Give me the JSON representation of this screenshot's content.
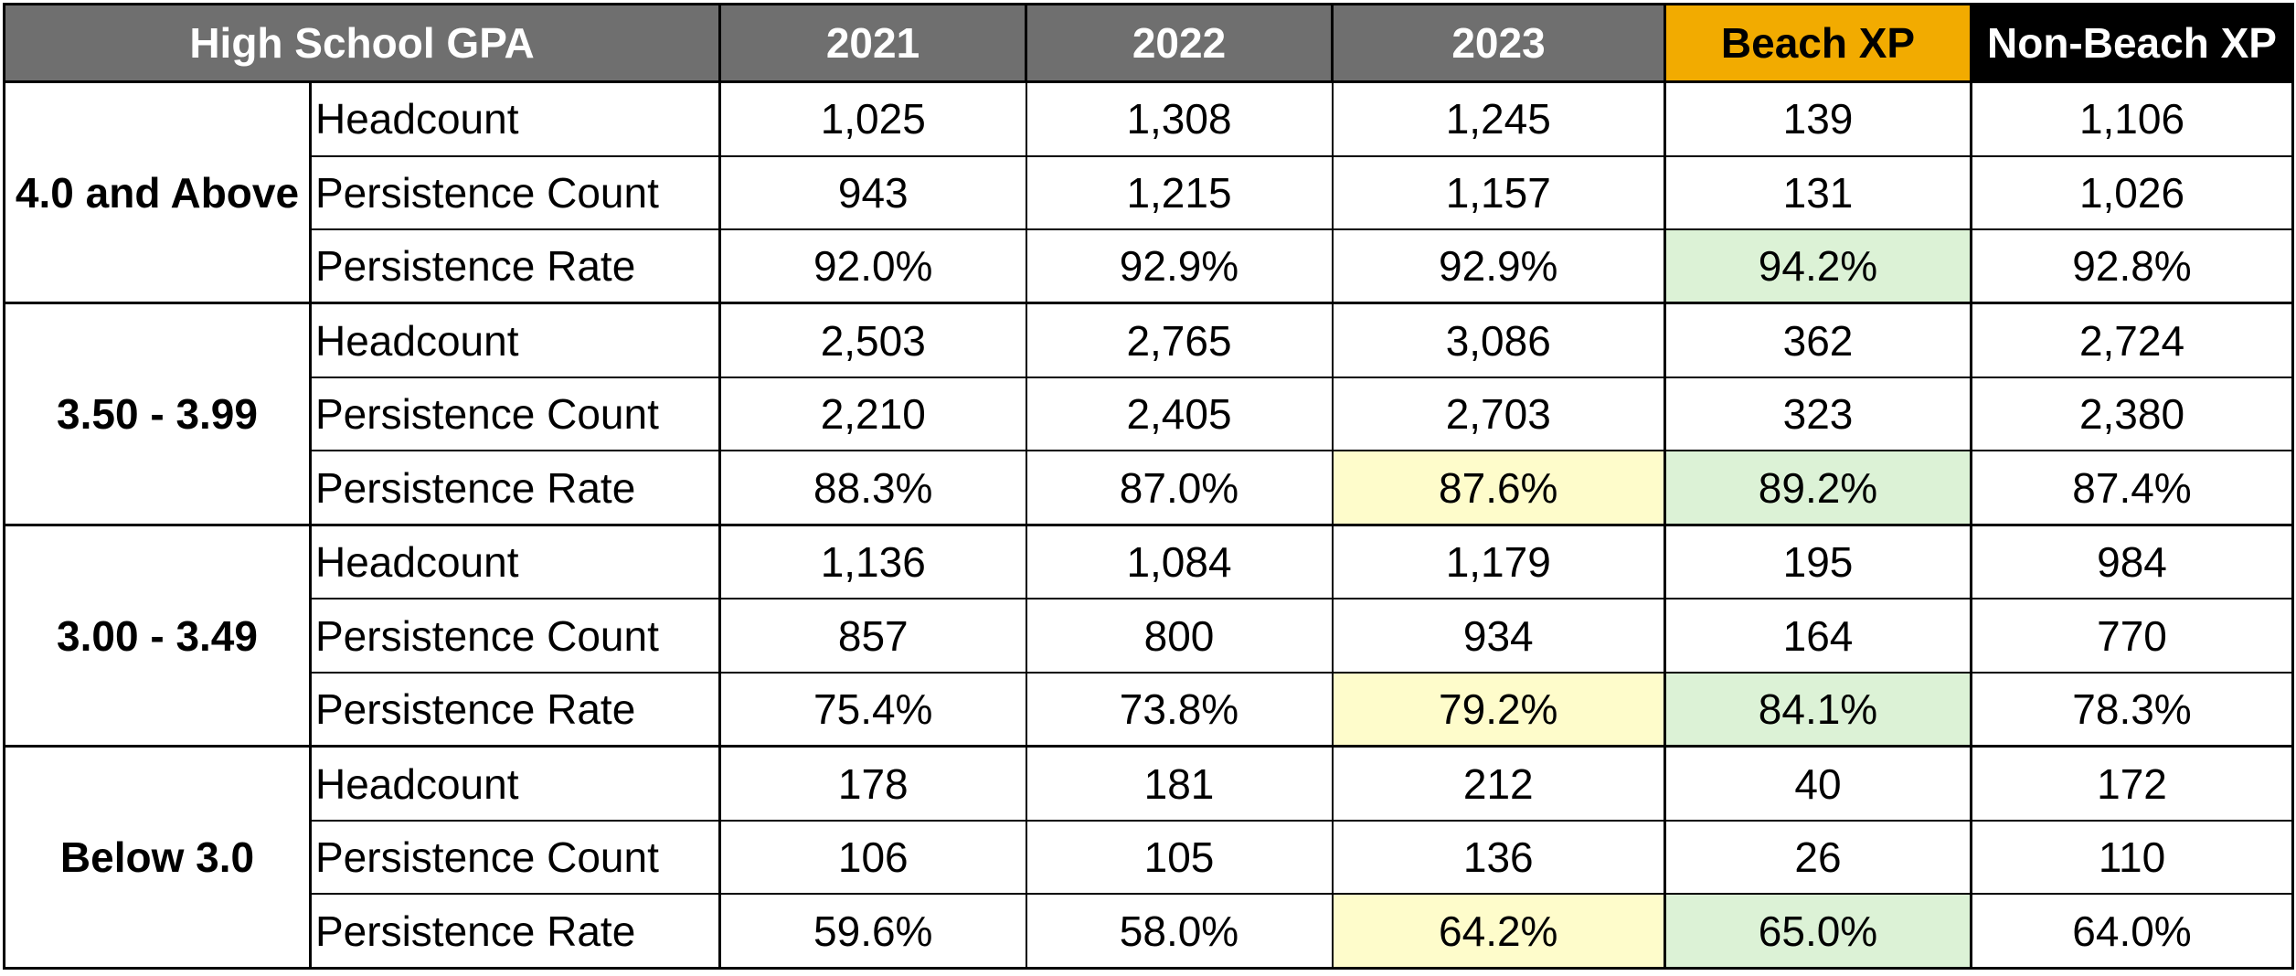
{
  "table": {
    "header": {
      "gpa_label": "High School GPA",
      "years": [
        "2021",
        "2022",
        "2023"
      ],
      "beach_label": "Beach XP",
      "nonbeach_label": "Non-Beach XP"
    },
    "colors": {
      "header_gray": "#6f6f6f",
      "beach_header": "#f2ab00",
      "nonbeach_header": "#000000",
      "highlight_yellow": "#fefccb",
      "highlight_green": "#dcf2d6"
    },
    "groups": [
      {
        "label": "4.0 and Above",
        "rows": [
          {
            "metric": "Headcount",
            "y2021": "1,025",
            "y2022": "1,308",
            "y2023": "1,245",
            "beach": "139",
            "nonbeach": "1,106"
          },
          {
            "metric": "Persistence Count",
            "y2021": "943",
            "y2022": "1,215",
            "y2023": "1,157",
            "beach": "131",
            "nonbeach": "1,026"
          },
          {
            "metric": "Persistence Rate",
            "y2021": "92.0%",
            "y2022": "92.9%",
            "y2023": "92.9%",
            "beach": "94.2%",
            "nonbeach": "92.8%"
          }
        ]
      },
      {
        "label": "3.50 - 3.99",
        "rows": [
          {
            "metric": "Headcount",
            "y2021": "2,503",
            "y2022": "2,765",
            "y2023": "3,086",
            "beach": "362",
            "nonbeach": "2,724"
          },
          {
            "metric": "Persistence Count",
            "y2021": "2,210",
            "y2022": "2,405",
            "y2023": "2,703",
            "beach": "323",
            "nonbeach": "2,380"
          },
          {
            "metric": "Persistence Rate",
            "y2021": "88.3%",
            "y2022": "87.0%",
            "y2023": "87.6%",
            "beach": "89.2%",
            "nonbeach": "87.4%"
          }
        ]
      },
      {
        "label": "3.00 - 3.49",
        "rows": [
          {
            "metric": "Headcount",
            "y2021": "1,136",
            "y2022": "1,084",
            "y2023": "1,179",
            "beach": "195",
            "nonbeach": "984"
          },
          {
            "metric": "Persistence Count",
            "y2021": "857",
            "y2022": "800",
            "y2023": "934",
            "beach": "164",
            "nonbeach": "770"
          },
          {
            "metric": "Persistence Rate",
            "y2021": "75.4%",
            "y2022": "73.8%",
            "y2023": "79.2%",
            "beach": "84.1%",
            "nonbeach": "78.3%"
          }
        ]
      },
      {
        "label": "Below 3.0",
        "rows": [
          {
            "metric": "Headcount",
            "y2021": "178",
            "y2022": "181",
            "y2023": "212",
            "beach": "40",
            "nonbeach": "172"
          },
          {
            "metric": "Persistence Count",
            "y2021": "106",
            "y2022": "105",
            "y2023": "136",
            "beach": "26",
            "nonbeach": "110"
          },
          {
            "metric": "Persistence Rate",
            "y2021": "59.6%",
            "y2022": "58.0%",
            "y2023": "64.2%",
            "beach": "65.0%",
            "nonbeach": "64.0%"
          }
        ]
      }
    ]
  }
}
